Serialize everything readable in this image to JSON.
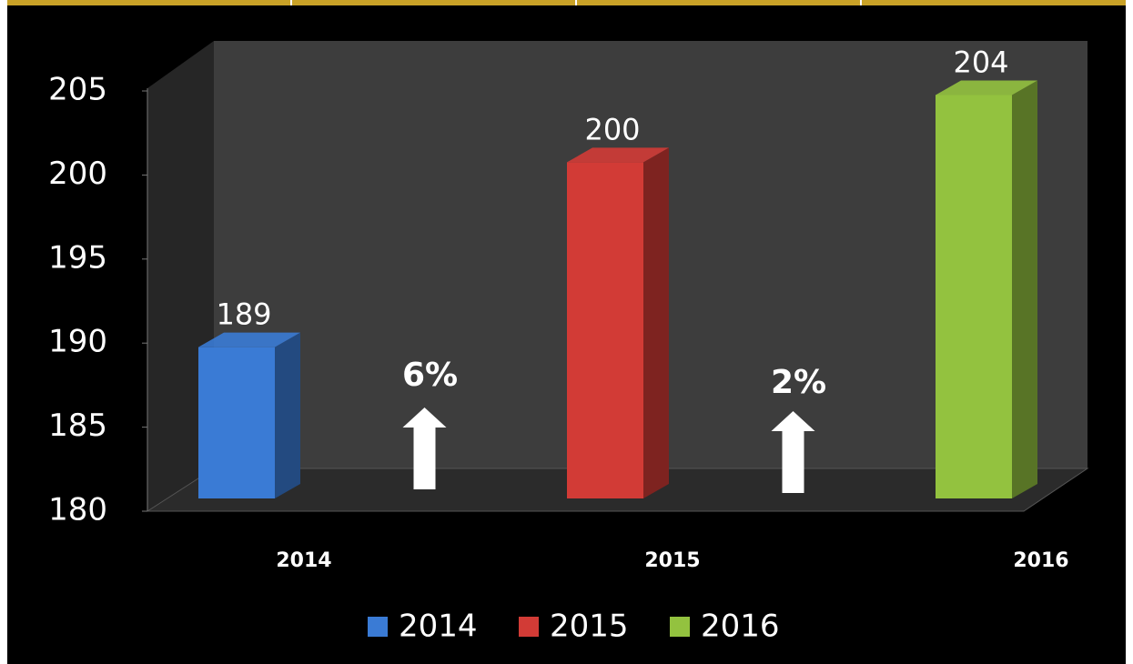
{
  "chart_data": {
    "type": "bar3d",
    "categories": [
      "2014",
      "2015",
      "2016"
    ],
    "values": [
      189,
      200,
      204
    ],
    "colors": [
      "#3a7bd5",
      "#d23b36",
      "#93c23f"
    ],
    "ylim": [
      180,
      205
    ],
    "yticks": [
      180,
      185,
      190,
      195,
      200,
      205
    ],
    "annotations": [
      {
        "text": "6%"
      },
      {
        "text": "2%"
      }
    ],
    "legend": true
  }
}
